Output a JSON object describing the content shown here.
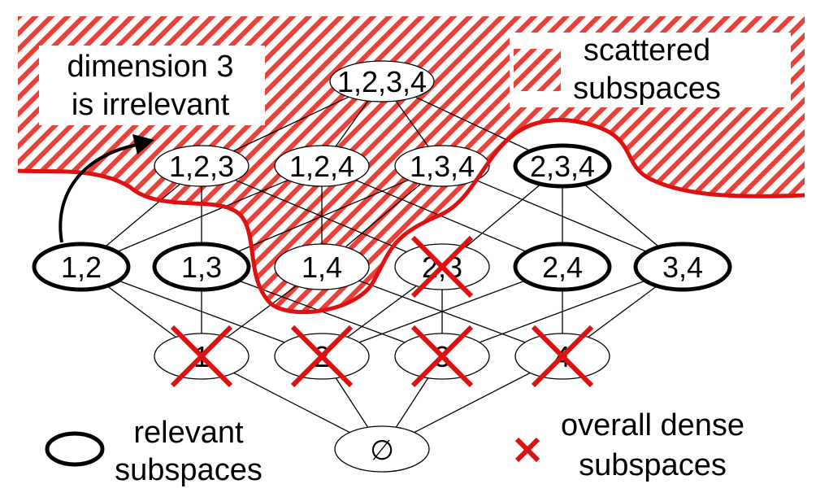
{
  "annotations": {
    "dimension_note_line1": "dimension 3",
    "dimension_note_line2": "is irrelevant",
    "scattered_line1": "scattered",
    "scattered_line2": "subspaces"
  },
  "legend": {
    "relevant_line1": "relevant",
    "relevant_line2": "subspaces",
    "dense_line1": "overall dense",
    "dense_line2": "subspaces"
  },
  "nodes": [
    {
      "id": "1234",
      "label": "1,2,3,4",
      "relevant": false,
      "dense": false
    },
    {
      "id": "123",
      "label": "1,2,3",
      "relevant": false,
      "dense": false
    },
    {
      "id": "124",
      "label": "1,2,4",
      "relevant": false,
      "dense": false
    },
    {
      "id": "134",
      "label": "1,3,4",
      "relevant": false,
      "dense": false
    },
    {
      "id": "234",
      "label": "2,3,4",
      "relevant": true,
      "dense": false
    },
    {
      "id": "12",
      "label": "1,2",
      "relevant": true,
      "dense": false
    },
    {
      "id": "13",
      "label": "1,3",
      "relevant": true,
      "dense": false
    },
    {
      "id": "14",
      "label": "1,4",
      "relevant": false,
      "dense": false
    },
    {
      "id": "23",
      "label": "2,3",
      "relevant": false,
      "dense": true
    },
    {
      "id": "24",
      "label": "2,4",
      "relevant": true,
      "dense": false
    },
    {
      "id": "34",
      "label": "3,4",
      "relevant": true,
      "dense": false
    },
    {
      "id": "1",
      "label": "1",
      "relevant": false,
      "dense": true
    },
    {
      "id": "2",
      "label": "2",
      "relevant": false,
      "dense": true
    },
    {
      "id": "3",
      "label": "3",
      "relevant": false,
      "dense": true
    },
    {
      "id": "4",
      "label": "4",
      "relevant": false,
      "dense": true
    },
    {
      "id": "empty",
      "label": "∅",
      "relevant": false,
      "dense": false
    }
  ],
  "edges": [
    [
      "1234",
      "123"
    ],
    [
      "1234",
      "124"
    ],
    [
      "1234",
      "134"
    ],
    [
      "1234",
      "234"
    ],
    [
      "123",
      "12"
    ],
    [
      "123",
      "13"
    ],
    [
      "123",
      "23"
    ],
    [
      "124",
      "12"
    ],
    [
      "124",
      "14"
    ],
    [
      "124",
      "24"
    ],
    [
      "134",
      "13"
    ],
    [
      "134",
      "14"
    ],
    [
      "134",
      "34"
    ],
    [
      "234",
      "23"
    ],
    [
      "234",
      "24"
    ],
    [
      "234",
      "34"
    ],
    [
      "12",
      "1"
    ],
    [
      "12",
      "2"
    ],
    [
      "13",
      "1"
    ],
    [
      "13",
      "3"
    ],
    [
      "14",
      "1"
    ],
    [
      "14",
      "4"
    ],
    [
      "23",
      "2"
    ],
    [
      "23",
      "3"
    ],
    [
      "24",
      "2"
    ],
    [
      "24",
      "4"
    ],
    [
      "34",
      "3"
    ],
    [
      "34",
      "4"
    ],
    [
      "1",
      "empty"
    ],
    [
      "2",
      "empty"
    ],
    [
      "3",
      "empty"
    ],
    [
      "4",
      "empty"
    ]
  ],
  "colors": {
    "hatch": "#e8413a",
    "boundary": "#dd1111",
    "cross": "#dd1111",
    "edge": "#000000"
  }
}
